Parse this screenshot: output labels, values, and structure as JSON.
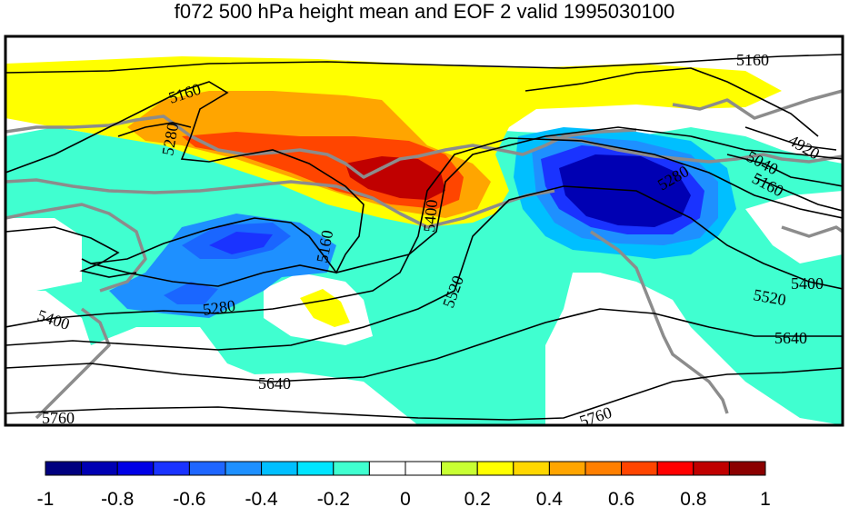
{
  "title": "f072 500 hPa height mean and EOF 2 valid 1995030100",
  "colorbar": {
    "colors": [
      "#00007f",
      "#0000b3",
      "#0000e6",
      "#1a33ff",
      "#1f66ff",
      "#1e90ff",
      "#00bfff",
      "#00e5ff",
      "#40ffd0",
      "#ffffff",
      "#ffffff",
      "#c8ff33",
      "#ffff00",
      "#ffd700",
      "#ffa500",
      "#ff7f00",
      "#ff4500",
      "#ff0000",
      "#c00000",
      "#8b0000"
    ],
    "tick_labels": [
      "-1",
      "-0.8",
      "-0.6",
      "-0.4",
      "-0.2",
      "0",
      "0.2",
      "0.4",
      "0.6",
      "0.8",
      "1"
    ]
  },
  "contour_labels": [
    "5160",
    "5280",
    "5400",
    "5520",
    "5640",
    "5760",
    "4920",
    "5040"
  ],
  "colors": {
    "coastline": "#8c8c8c",
    "contour": "#000000",
    "frame": "#000000"
  }
}
